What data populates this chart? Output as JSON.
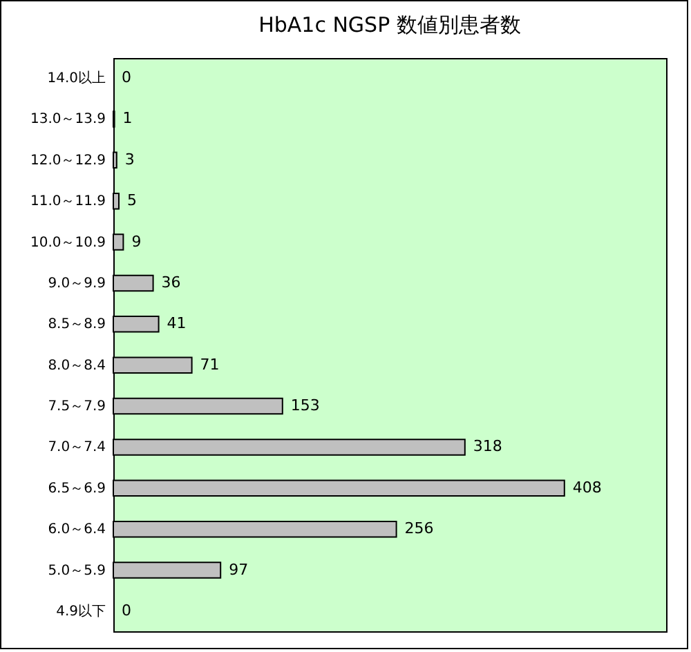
{
  "chart_data": {
    "type": "bar",
    "orientation": "horizontal",
    "title": "HbA1c NGSP 数値別患者数",
    "categories": [
      "14.0以上",
      "13.0～13.9",
      "12.0～12.9",
      "11.0～11.9",
      "10.0～10.9",
      "9.0～9.9",
      "8.5～8.9",
      "8.0～8.4",
      "7.5～7.9",
      "7.0～7.4",
      "6.5～6.9",
      "6.0～6.4",
      "5.0～5.9",
      "4.9以下"
    ],
    "values": [
      0,
      1,
      3,
      5,
      9,
      36,
      41,
      71,
      153,
      318,
      408,
      256,
      97,
      0
    ],
    "color": "#c0c0c0",
    "xlim": [
      0,
      500
    ],
    "data_labels": true
  }
}
